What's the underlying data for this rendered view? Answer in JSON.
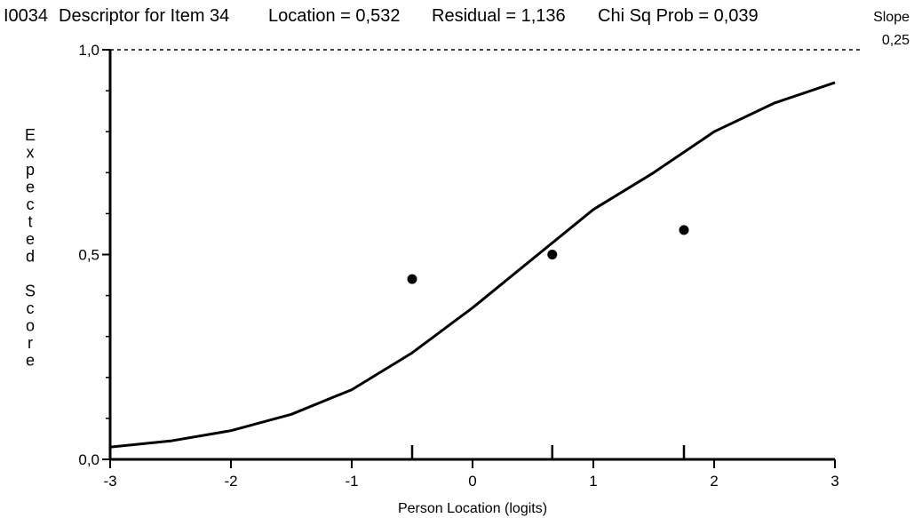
{
  "header": {
    "item_id": "I0034",
    "descriptor": "Descriptor for Item 34",
    "location": "Location = 0,532",
    "residual": "Residual = 1,136",
    "chi_sq": "Chi Sq Prob = 0,039",
    "slope_label": "Slope",
    "slope_value": "0,25"
  },
  "chart_data": {
    "type": "line",
    "title": "",
    "xlabel": "Person Location (logits)",
    "ylabel": "Expected Score",
    "xlim": [
      -3,
      3
    ],
    "ylim": [
      0,
      1
    ],
    "x_ticks": [
      -3,
      -2,
      -1,
      0,
      1,
      2,
      3
    ],
    "x_tick_labels": [
      "-3",
      "-2",
      "-1",
      "0",
      "1",
      "2",
      "3"
    ],
    "y_ticks": [
      0,
      0.5,
      1
    ],
    "y_tick_labels": [
      "0,0",
      "0,5",
      "1,0"
    ],
    "reference_line": {
      "y": 1.0,
      "style": "dashed"
    },
    "series": [
      {
        "type": "line",
        "x": [
          -3.0,
          -2.5,
          -2.0,
          -1.5,
          -1.0,
          -0.5,
          0.0,
          0.5,
          1.0,
          1.5,
          2.0,
          2.5,
          3.0
        ],
        "y": [
          0.03,
          0.045,
          0.07,
          0.11,
          0.17,
          0.26,
          0.37,
          0.49,
          0.61,
          0.7,
          0.8,
          0.87,
          0.92
        ]
      },
      {
        "type": "scatter",
        "x": [
          -0.5,
          0.66,
          1.75
        ],
        "y": [
          0.44,
          0.5,
          0.56
        ]
      }
    ],
    "grid": false
  }
}
